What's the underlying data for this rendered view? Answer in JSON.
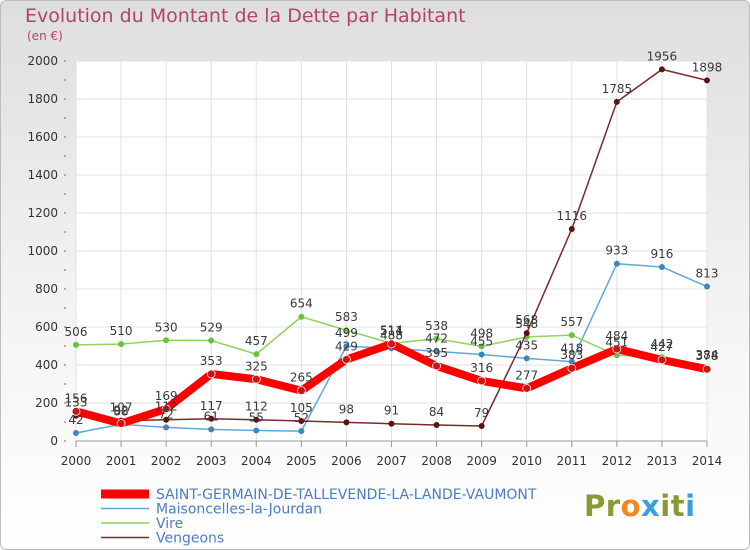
{
  "title": "Evolution du Montant de la Dette par Habitant",
  "subtitle": "(en €)",
  "logo": {
    "text": "Proxiti",
    "letter_colors": [
      "#8a9a32",
      "#8a9a32",
      "#f08a1c",
      "#3aa0dc",
      "#8a9a32",
      "#8a9a32",
      "#3aa0dc"
    ]
  },
  "chart_data": {
    "type": "line",
    "title": "Evolution du Montant de la Dette par Habitant",
    "subtitle": "(en €)",
    "x": [
      "2000",
      "2001",
      "2002",
      "2003",
      "2004",
      "2005",
      "2006",
      "2007",
      "2008",
      "2009",
      "2010",
      "2011",
      "2012",
      "2013",
      "2014"
    ],
    "ylim": [
      0,
      2000
    ],
    "yticks": [
      0,
      200,
      400,
      600,
      800,
      1000,
      1200,
      1400,
      1600,
      1800,
      2000
    ],
    "grid": true,
    "legend_position": "bottom-left",
    "series": [
      {
        "name": "SAINT-GERMAIN-DE-TALLEVENDE-LA-LANDE-VAUMONT",
        "color": "#ff0000",
        "marker": "#cc1414",
        "thick": true,
        "values": [
          156,
          92,
          169,
          353,
          325,
          265,
          429,
          511,
          395,
          316,
          277,
          383,
          484,
          427,
          378
        ]
      },
      {
        "name": "Maisoncelles-la-Jourdan",
        "color": "#5fa8d8",
        "marker": "#3f86c0",
        "thick": false,
        "values": [
          42,
          88,
          72,
          61,
          55,
          52,
          499,
          488,
          472,
          455,
          435,
          418,
          933,
          916,
          813
        ]
      },
      {
        "name": "Vire",
        "color": "#8fd262",
        "marker": "#6cc040",
        "thick": false,
        "values": [
          506,
          510,
          530,
          529,
          457,
          654,
          583,
          514,
          538,
          498,
          548,
          557,
          451,
          442,
          384
        ]
      },
      {
        "name": "Vengeons",
        "color": "#7a2a2a",
        "marker": "#5a1414",
        "thick": false,
        "values": [
          133,
          107,
          112,
          117,
          112,
          105,
          98,
          91,
          84,
          79,
          568,
          1116,
          1785,
          1956,
          1898
        ]
      }
    ]
  }
}
